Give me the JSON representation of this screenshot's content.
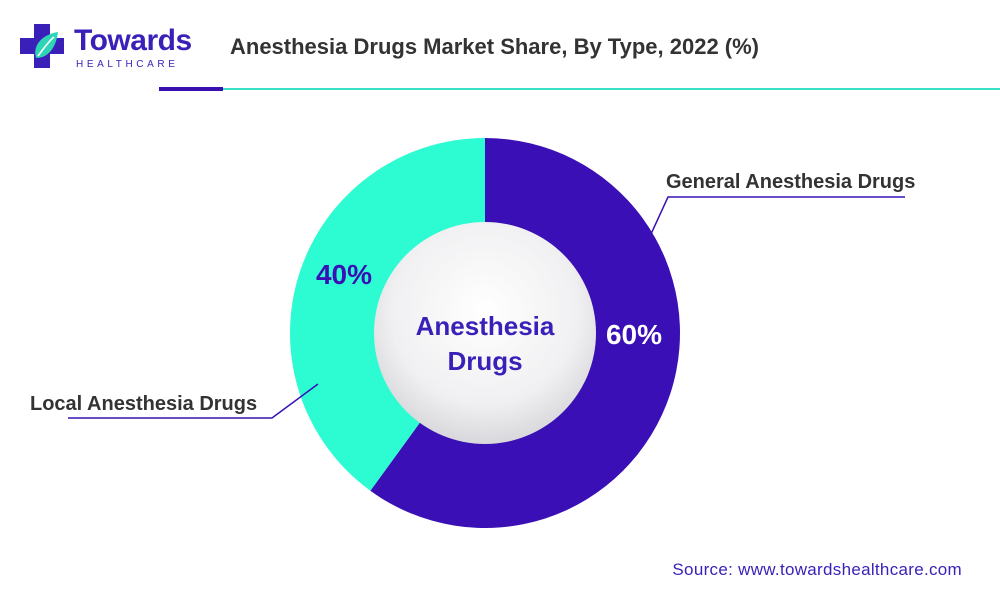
{
  "logo": {
    "name": "Towards",
    "sub": "HEALTHCARE"
  },
  "title": "Anesthesia Drugs Market Share, By Type, 2022 (%)",
  "source": "Source: www.towardshealthcare.com",
  "colors": {
    "general": "#3a10b6",
    "local": "#2dfcd3",
    "center_text": "#3a1fb8",
    "accent_dark": "#3a0fb0",
    "accent_light": "#37e0c2"
  },
  "chart_data": {
    "type": "donut",
    "title": "Anesthesia Drugs Market Share, By Type, 2022 (%)",
    "center_label": [
      "Anesthesia",
      "Drugs"
    ],
    "slices": [
      {
        "label": "General Anesthesia Drugs",
        "value": 60,
        "value_label": "60%",
        "color": "#3a10b6"
      },
      {
        "label": "Local Anesthesia Drugs",
        "value": 40,
        "value_label": "40%",
        "color": "#2dfcd3"
      }
    ]
  }
}
